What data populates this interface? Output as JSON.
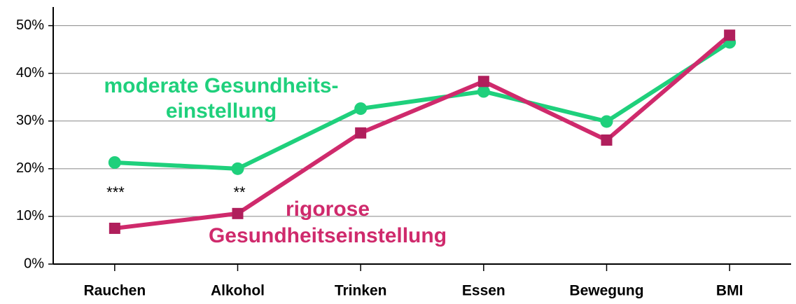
{
  "chart_data": {
    "type": "line",
    "categories": [
      "Rauchen",
      "Alkohol",
      "Trinken",
      "Essen",
      "Bewegung",
      "BMI"
    ],
    "series": [
      {
        "name_lines": [
          "moderate Gesundheits-",
          "einstellung"
        ],
        "color": "#1fd07c",
        "marker": "circle",
        "values": [
          21.3,
          20.0,
          32.6,
          36.2,
          29.9,
          46.5
        ]
      },
      {
        "name_lines": [
          "rigorose",
          "Gesundheitseinstellung"
        ],
        "color": "#cf2a6c",
        "marker": "square",
        "values": [
          7.5,
          10.6,
          27.5,
          38.3,
          26.0,
          48.0
        ]
      }
    ],
    "annotations": [
      "***",
      "**"
    ],
    "ylim": [
      0,
      52
    ],
    "yticks": [
      {
        "value": 0,
        "label": "0%"
      },
      {
        "value": 10,
        "label": "10%"
      },
      {
        "value": 20,
        "label": "20%"
      },
      {
        "value": 30,
        "label": "30%"
      },
      {
        "value": 40,
        "label": "40%"
      },
      {
        "value": 50,
        "label": "50%"
      }
    ],
    "grid": true
  }
}
